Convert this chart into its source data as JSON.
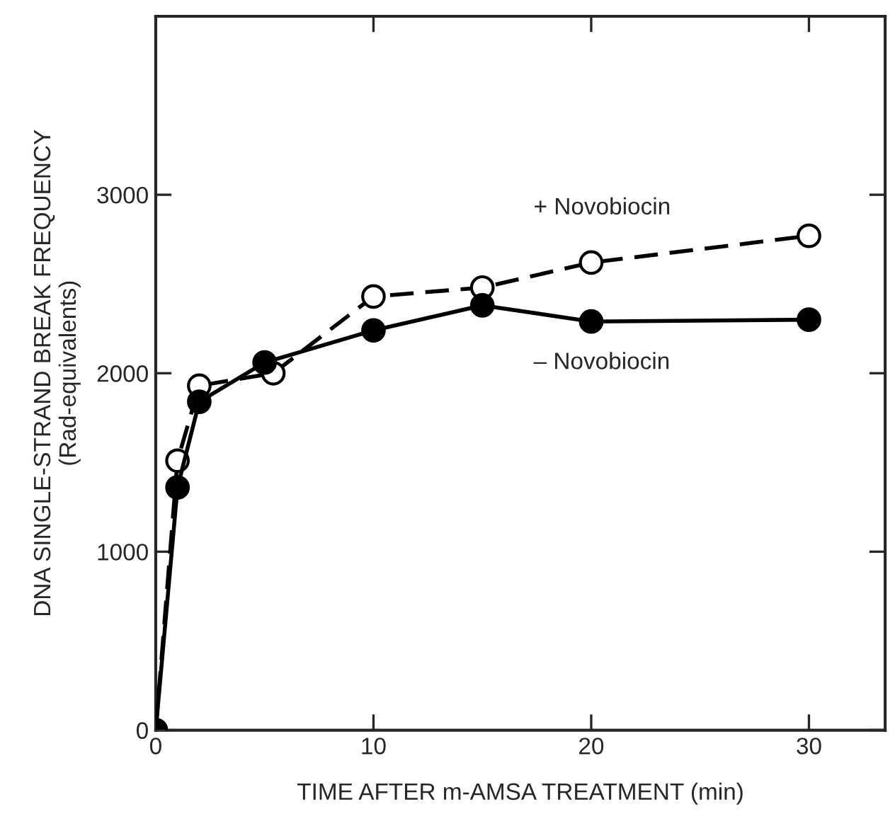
{
  "chart_data": {
    "type": "line",
    "xlabel": "TIME AFTER m-AMSA TREATMENT (min)",
    "ylabel": "DNA SINGLE-STRAND BREAK FREQUENCY\n(Rad-equivalents)",
    "xlim": [
      0,
      33.5
    ],
    "xticks": [
      0,
      10,
      20,
      30
    ],
    "ylim": [
      0,
      4000
    ],
    "yticks": [
      0,
      1000,
      2000,
      3000
    ],
    "grid": false,
    "legend": false,
    "series": [
      {
        "name": "+ Novobiocin",
        "color": "#000000",
        "marker": "circle",
        "line_style": "dashed",
        "x": [
          0,
          1,
          2,
          5.4,
          10,
          15,
          20,
          30
        ],
        "values": [
          0,
          1510,
          1930,
          2000,
          2430,
          2480,
          2620,
          2770
        ]
      },
      {
        "name": "– Novobiocin",
        "color": "#000000",
        "marker": "circle",
        "line_style": "solid",
        "x": [
          0,
          1,
          2,
          5,
          10,
          15,
          20,
          30
        ],
        "values": [
          0,
          1360,
          1840,
          2060,
          2240,
          2380,
          2290,
          2300
        ]
      }
    ]
  }
}
